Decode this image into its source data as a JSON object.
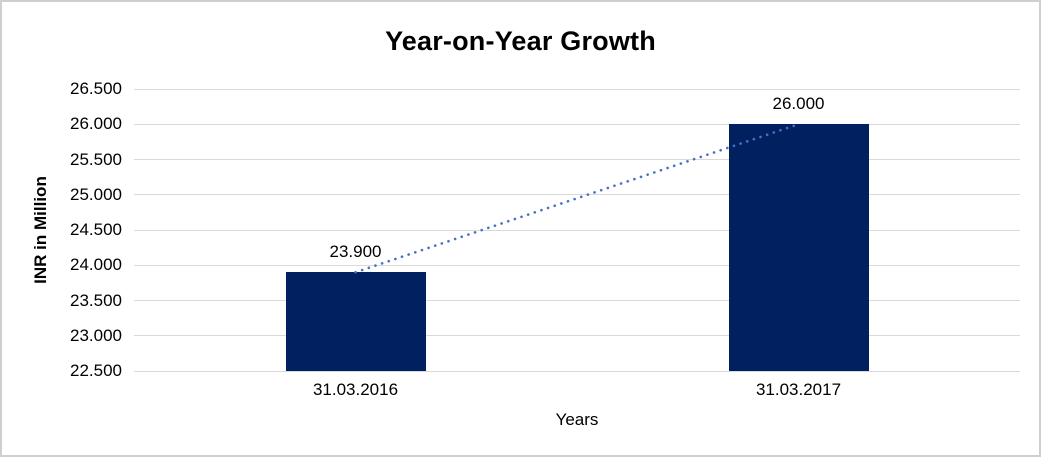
{
  "chart_data": {
    "type": "bar",
    "title": "Year-on-Year Growth",
    "xlabel": "Years",
    "ylabel": "INR in Million",
    "categories": [
      "31.03.2016",
      "31.03.2017"
    ],
    "values": [
      23900,
      26000
    ],
    "value_labels": [
      "23.900",
      "26.000"
    ],
    "ytick_labels": [
      "22.500",
      "23.000",
      "23.500",
      "24.000",
      "24.500",
      "25.000",
      "25.500",
      "26.000",
      "26.500"
    ],
    "ylim": [
      22500,
      26500
    ],
    "ytick_step": 500,
    "grid": true,
    "legend": "none",
    "bar_color": "#002060",
    "grid_color": "#d9d9d9",
    "trendline": {
      "style": "dotted",
      "color": "#4472c4",
      "from": "31.03.2016",
      "to": "31.03.2017"
    }
  }
}
